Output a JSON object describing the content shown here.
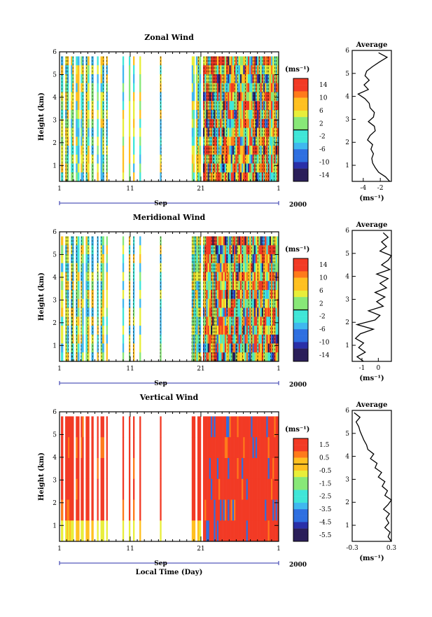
{
  "chart_data": [
    {
      "type": "heatmap",
      "title": "Zonal Wind",
      "ylabel": "Height (km)",
      "xlabel_month": "Sep",
      "year_label": "2000",
      "x_ticks": [
        "1",
        "11",
        "21",
        "1"
      ],
      "y_ticks": [
        "1",
        "2",
        "3",
        "4",
        "5",
        "6"
      ],
      "ylim": [
        0.3,
        6
      ],
      "colorbar": {
        "unit": "(ms⁻¹)",
        "ticks": [
          "14",
          "10",
          "6",
          "2",
          "-2",
          "-6",
          "-10",
          "-14"
        ],
        "range": [
          -16,
          16
        ]
      },
      "data_segments_days": [
        [
          1.2,
          1.5
        ],
        [
          1.8,
          2.3
        ],
        [
          2.6,
          3.0
        ],
        [
          3.3,
          3.8
        ],
        [
          4.0,
          4.4
        ],
        [
          4.7,
          5.2
        ],
        [
          5.5,
          5.8
        ],
        [
          6.3,
          6.5
        ],
        [
          6.8,
          7.3
        ],
        [
          7.6,
          7.8
        ],
        [
          9.9,
          10.1
        ],
        [
          10.8,
          11.0
        ],
        [
          11.4,
          11.6
        ],
        [
          12.3,
          12.5
        ],
        [
          15.2,
          15.4
        ],
        [
          19.7,
          20.1
        ],
        [
          20.3,
          21.0
        ],
        [
          21.3,
          32.0
        ]
      ],
      "profile": {
        "title": "Average",
        "xlabel": "(ms⁻¹)",
        "x_ticks": [
          "-4",
          "-2"
        ],
        "xlim": [
          -5.3,
          -0.7
        ],
        "heights": [
          0.3,
          0.5,
          0.7,
          0.9,
          1.1,
          1.3,
          1.5,
          1.7,
          1.9,
          2.1,
          2.3,
          2.5,
          2.7,
          2.9,
          3.1,
          3.3,
          3.5,
          3.7,
          3.9,
          4.1,
          4.3,
          4.5,
          4.7,
          4.9,
          5.1,
          5.3,
          5.5,
          5.7,
          5.9
        ],
        "values": [
          -0.9,
          -1.4,
          -2.2,
          -2.6,
          -2.9,
          -3.0,
          -2.8,
          -3.1,
          -2.9,
          -3.5,
          -3.2,
          -2.6,
          -2.7,
          -3.4,
          -2.8,
          -2.7,
          -3.2,
          -3.3,
          -3.8,
          -4.6,
          -3.4,
          -3.9,
          -3.3,
          -3.8,
          -3.6,
          -2.9,
          -2.1,
          -1.2,
          -2.2
        ]
      }
    },
    {
      "type": "heatmap",
      "title": "Meridional Wind",
      "ylabel": "Height (km)",
      "xlabel_month": "Sep",
      "year_label": "2000",
      "x_ticks": [
        "1",
        "11",
        "21",
        "1"
      ],
      "y_ticks": [
        "1",
        "2",
        "3",
        "4",
        "5",
        "6"
      ],
      "ylim": [
        0.3,
        6
      ],
      "colorbar": {
        "unit": "(ms⁻¹)",
        "ticks": [
          "14",
          "10",
          "6",
          "2",
          "-2",
          "-6",
          "-10",
          "-14"
        ],
        "range": [
          -16,
          16
        ]
      },
      "data_segments_days": [
        [
          1.2,
          1.5
        ],
        [
          1.8,
          2.3
        ],
        [
          2.6,
          3.0
        ],
        [
          3.3,
          3.8
        ],
        [
          4.0,
          4.4
        ],
        [
          4.7,
          5.2
        ],
        [
          5.5,
          5.8
        ],
        [
          6.3,
          6.5
        ],
        [
          6.8,
          7.3
        ],
        [
          7.6,
          7.8
        ],
        [
          9.9,
          10.1
        ],
        [
          10.8,
          11.0
        ],
        [
          11.4,
          11.6
        ],
        [
          12.3,
          12.5
        ],
        [
          15.2,
          15.4
        ],
        [
          19.7,
          21.0
        ],
        [
          21.3,
          32.0
        ]
      ],
      "profile": {
        "title": "Average",
        "xlabel": "(ms⁻¹)",
        "x_ticks": [
          "-1",
          "0"
        ],
        "xlim": [
          -1.6,
          0.8
        ],
        "heights": [
          0.3,
          0.5,
          0.7,
          0.9,
          1.1,
          1.3,
          1.5,
          1.7,
          1.9,
          2.1,
          2.3,
          2.5,
          2.7,
          2.9,
          3.1,
          3.3,
          3.5,
          3.7,
          3.9,
          4.1,
          4.3,
          4.5,
          4.7,
          4.9,
          5.1,
          5.3,
          5.5,
          5.7,
          5.9
        ],
        "values": [
          -0.9,
          -1.3,
          -0.8,
          -1.2,
          -0.9,
          -1.4,
          -1.1,
          -0.3,
          -1.3,
          -0.2,
          0.1,
          -0.6,
          0.3,
          -0.1,
          0.4,
          -0.2,
          0.5,
          0.1,
          0.6,
          -0.1,
          0.7,
          0.2,
          0.6,
          0.8,
          0.1,
          0.5,
          0.2,
          0.6,
          0.3
        ]
      }
    },
    {
      "type": "heatmap",
      "title": "Vertical Wind",
      "ylabel": "Height (km)",
      "xlabel": "Local Time (Day)",
      "xlabel_month": "Sep",
      "year_label": "2000",
      "x_ticks": [
        "1",
        "11",
        "21",
        "1"
      ],
      "y_ticks": [
        "1",
        "2",
        "3",
        "4",
        "5",
        "6"
      ],
      "ylim": [
        0.3,
        6
      ],
      "colorbar": {
        "unit": "(ms⁻¹)",
        "ticks": [
          "1.5",
          "0.5",
          "-0.5",
          "-1.5",
          "-2.5",
          "-3.5",
          "-4.5",
          "-5.5"
        ],
        "range": [
          -6,
          2
        ]
      },
      "data_segments_days": [
        [
          1.2,
          1.5
        ],
        [
          1.8,
          3.0
        ],
        [
          3.3,
          3.8
        ],
        [
          4.0,
          4.4
        ],
        [
          4.7,
          5.2
        ],
        [
          5.5,
          5.8
        ],
        [
          6.3,
          6.5
        ],
        [
          6.8,
          7.3
        ],
        [
          7.6,
          7.8
        ],
        [
          9.9,
          10.1
        ],
        [
          10.8,
          11.0
        ],
        [
          11.4,
          11.6
        ],
        [
          12.3,
          12.5
        ],
        [
          15.2,
          15.4
        ],
        [
          19.7,
          20.2
        ],
        [
          20.5,
          21.0
        ],
        [
          21.3,
          32.0
        ]
      ],
      "profile": {
        "title": "Average",
        "xlabel": "(ms⁻¹)",
        "x_ticks": [
          "-0.3",
          "0.3"
        ],
        "xlim": [
          -0.3,
          0.3
        ],
        "heights": [
          0.3,
          0.5,
          0.7,
          0.9,
          1.1,
          1.3,
          1.5,
          1.7,
          1.9,
          2.1,
          2.3,
          2.5,
          2.7,
          2.9,
          3.1,
          3.3,
          3.5,
          3.7,
          3.9,
          4.1,
          4.3,
          4.5,
          4.7,
          4.9,
          5.1,
          5.3,
          5.5,
          5.7,
          5.9
        ],
        "values": [
          0.3,
          0.25,
          0.28,
          0.2,
          0.26,
          0.22,
          0.27,
          0.18,
          0.25,
          0.3,
          0.2,
          0.24,
          0.16,
          0.2,
          0.1,
          0.15,
          0.05,
          0.08,
          -0.02,
          0.03,
          -0.06,
          -0.08,
          -0.12,
          -0.15,
          -0.18,
          -0.2,
          -0.24,
          -0.18,
          -0.27
        ]
      }
    }
  ]
}
